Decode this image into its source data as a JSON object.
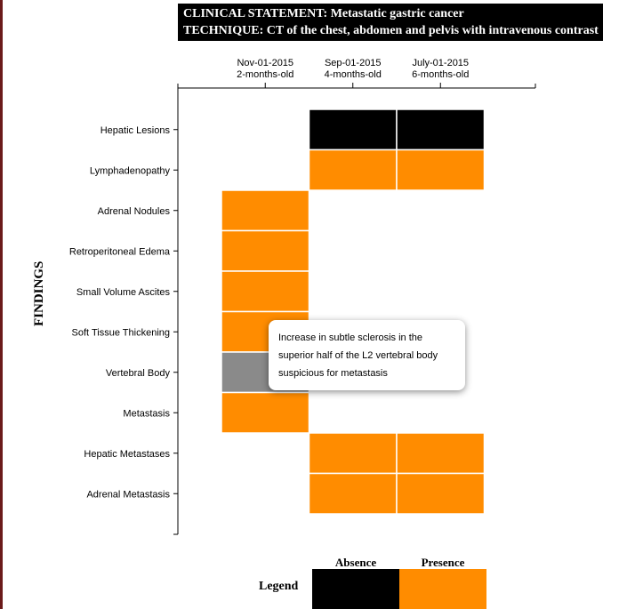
{
  "header": {
    "clinical_statement": "CLINICAL STATEMENT: Metastatic gastric cancer",
    "technique": "TECHNIQUE: CT of the chest, abdomen and pelvis with intravenous contrast"
  },
  "chart_data": {
    "type": "heatmap",
    "y_axis_title": "FINDINGS",
    "columns": [
      {
        "date": "Nov-01-2015",
        "age": "2-months-old"
      },
      {
        "date": "Sep-01-2015",
        "age": "4-months-old"
      },
      {
        "date": "July-01-2015",
        "age": "6-months-old"
      }
    ],
    "findings": [
      "Hepatic Lesions",
      "Lymphadenopathy",
      "Adrenal Nodules",
      "Retroperitoneal Edema",
      "Small Volume Ascites",
      "Soft Tissue Thickening",
      "Vertebral Body",
      "Metastasis",
      "Hepatic Metastases",
      "Adrenal Metastasis"
    ],
    "cells": [
      [
        null,
        "absence",
        "absence"
      ],
      [
        null,
        "presence",
        "presence"
      ],
      [
        "presence",
        null,
        null
      ],
      [
        "presence",
        null,
        null
      ],
      [
        "presence",
        null,
        null
      ],
      [
        "presence",
        null,
        null
      ],
      [
        "highlighted",
        null,
        null
      ],
      [
        "presence",
        null,
        null
      ],
      [
        null,
        "presence",
        "presence"
      ],
      [
        null,
        "presence",
        "presence"
      ]
    ],
    "legend": {
      "title": "Legend",
      "absence": {
        "label": "Absence",
        "color": "#000000"
      },
      "presence": {
        "label": "Presence",
        "color": "#ff8c00"
      }
    },
    "highlight_color": "#8a8a8a",
    "tooltip": {
      "finding": "Vertebral Body",
      "text": "Increase in subtle sclerosis in the superior half of the L2 vertebral body suspicious for metastasis"
    }
  }
}
